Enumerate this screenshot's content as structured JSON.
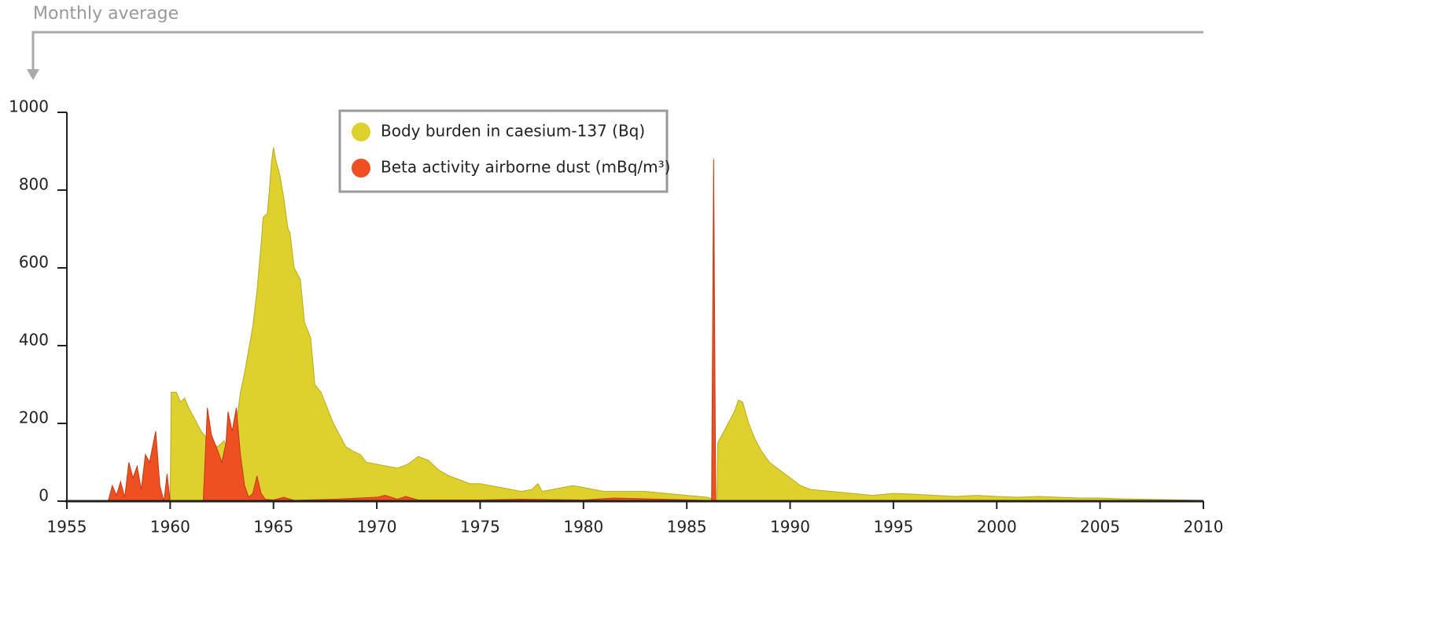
{
  "chart_data": {
    "type": "area",
    "subtitle": "Monthly average",
    "xlim": [
      1955,
      2010
    ],
    "xticks": [
      1955,
      1960,
      1965,
      1970,
      1975,
      1980,
      1985,
      1990,
      1995,
      2000,
      2005,
      2010
    ],
    "ylim": [
      0,
      1000
    ],
    "yticks": [
      0,
      200,
      400,
      600,
      800,
      1000
    ],
    "legend": "top",
    "series": [
      {
        "name": "Body burden in caesium-137 (Bq)",
        "color": "#ded12e",
        "x": [
          1960.0,
          1960.05,
          1960.3,
          1960.5,
          1960.7,
          1960.9,
          1961.2,
          1961.5,
          1961.8,
          1962.0,
          1962.3,
          1962.6,
          1962.9,
          1963.2,
          1963.4,
          1963.6,
          1963.8,
          1964.0,
          1964.2,
          1964.4,
          1964.5,
          1964.7,
          1964.8,
          1964.9,
          1965.0,
          1965.1,
          1965.3,
          1965.5,
          1965.7,
          1965.8,
          1966.0,
          1966.3,
          1966.5,
          1966.8,
          1967.0,
          1967.3,
          1967.6,
          1967.9,
          1968.2,
          1968.5,
          1968.8,
          1969.2,
          1969.5,
          1970.0,
          1970.5,
          1971.0,
          1971.5,
          1972.0,
          1972.5,
          1973.0,
          1973.5,
          1974.0,
          1974.5,
          1975.0,
          1975.5,
          1976.0,
          1976.5,
          1977.0,
          1977.5,
          1977.8,
          1978.0,
          1978.5,
          1979.0,
          1979.5,
          1980.0,
          1980.5,
          1981.0,
          1982.0,
          1983.0,
          1984.0,
          1985.0,
          1986.0,
          1986.3,
          1986.45,
          1986.5,
          1986.8,
          1987.0,
          1987.3,
          1987.5,
          1987.7,
          1988.0,
          1988.3,
          1988.6,
          1989.0,
          1989.5,
          1990.0,
          1990.5,
          1991.0,
          1992.0,
          1993.0,
          1994.0,
          1995.0,
          1996.0,
          1997.0,
          1998.0,
          1999.0,
          2000.0,
          2001.0,
          2002.0,
          2003.0,
          2004.0,
          2005.0,
          2006.0,
          2007.0,
          2008.0,
          2009.0,
          2010.0
        ],
        "values": [
          0,
          280,
          280,
          255,
          265,
          240,
          210,
          180,
          160,
          150,
          140,
          155,
          120,
          200,
          280,
          330,
          390,
          450,
          540,
          660,
          730,
          740,
          800,
          870,
          910,
          880,
          840,
          780,
          700,
          690,
          600,
          570,
          460,
          420,
          300,
          280,
          240,
          200,
          170,
          140,
          130,
          120,
          100,
          95,
          90,
          85,
          95,
          115,
          105,
          80,
          65,
          55,
          45,
          45,
          40,
          35,
          30,
          25,
          30,
          45,
          25,
          30,
          35,
          40,
          35,
          30,
          25,
          25,
          25,
          20,
          15,
          10,
          5,
          0,
          150,
          180,
          200,
          230,
          260,
          255,
          200,
          160,
          130,
          100,
          80,
          60,
          40,
          30,
          25,
          20,
          15,
          20,
          18,
          15,
          12,
          15,
          12,
          10,
          12,
          10,
          8,
          8,
          6,
          5,
          4,
          3,
          2
        ]
      },
      {
        "name": "Beta activity airborne dust (mBq/m³)",
        "color": "#ee5022",
        "x": [
          1957.0,
          1957.2,
          1957.4,
          1957.6,
          1957.8,
          1958.0,
          1958.2,
          1958.4,
          1958.6,
          1958.8,
          1959.0,
          1959.3,
          1959.5,
          1959.7,
          1959.85,
          1960.0,
          1961.6,
          1961.8,
          1962.0,
          1962.3,
          1962.5,
          1962.7,
          1962.8,
          1963.0,
          1963.2,
          1963.4,
          1963.6,
          1963.8,
          1964.0,
          1964.2,
          1964.4,
          1964.6,
          1965.0,
          1965.5,
          1966.0,
          1968.0,
          1970.0,
          1970.4,
          1971.0,
          1971.4,
          1972.0,
          1975.0,
          1977.0,
          1980.0,
          1981.5,
          1986.0,
          1986.2,
          1986.3,
          1986.4,
          2010.0
        ],
        "values": [
          0,
          40,
          15,
          50,
          10,
          100,
          60,
          90,
          30,
          120,
          100,
          180,
          40,
          0,
          70,
          0,
          0,
          240,
          170,
          130,
          100,
          150,
          230,
          180,
          240,
          120,
          40,
          10,
          20,
          65,
          20,
          5,
          3,
          10,
          2,
          5,
          10,
          15,
          5,
          12,
          3,
          3,
          5,
          3,
          8,
          2,
          0,
          880,
          0,
          0
        ]
      }
    ]
  }
}
